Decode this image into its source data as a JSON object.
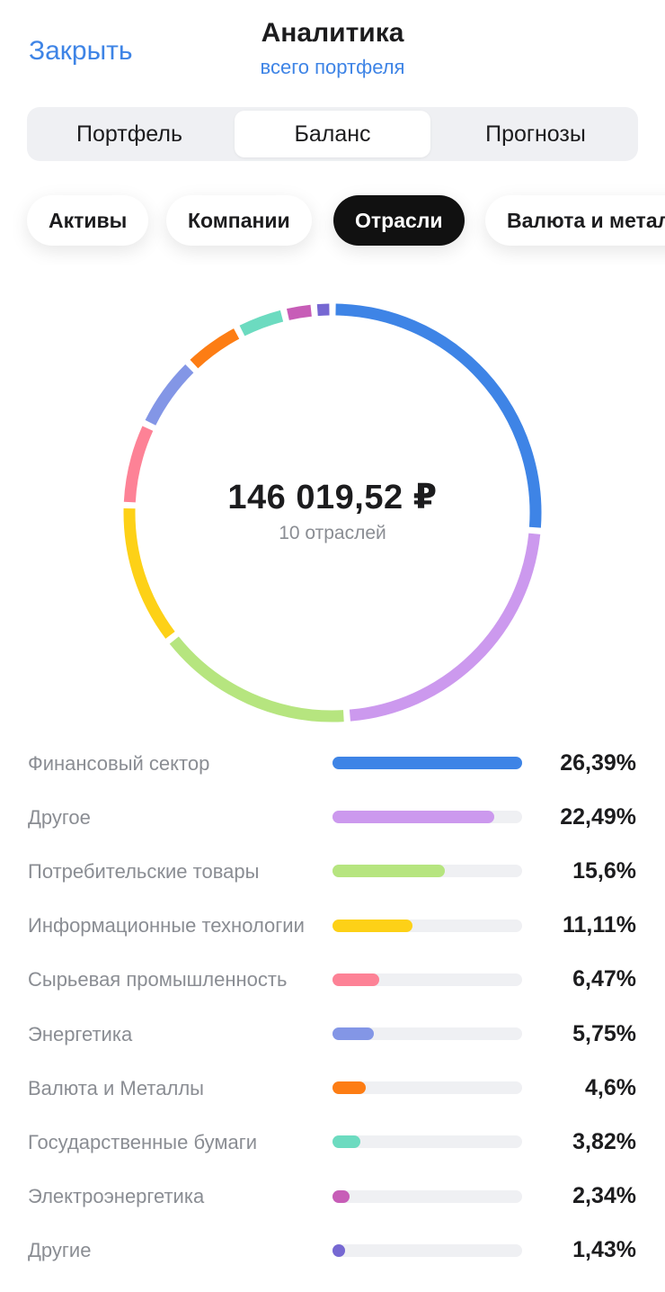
{
  "header": {
    "close_label": "Закрыть",
    "title": "Аналитика",
    "subtitle": "всего портфеля"
  },
  "tabs": [
    {
      "label": "Портфель",
      "active": false
    },
    {
      "label": "Баланс",
      "active": true
    },
    {
      "label": "Прогнозы",
      "active": false
    }
  ],
  "filters": [
    {
      "label": "Активы",
      "active": false
    },
    {
      "label": "Компании",
      "active": false
    },
    {
      "label": "Отрасли",
      "active": true
    },
    {
      "label": "Валюта и металлы",
      "active": false
    }
  ],
  "summary": {
    "total": "146 019,52 ₽",
    "count_label": "10 отраслей"
  },
  "chart_data": {
    "type": "pie",
    "categories": [
      "Финансовый сектор",
      "Другое",
      "Потребительские товары",
      "Информационные технологии",
      "Сырьевая промышленность",
      "Энергетика",
      "Валюта и Металлы",
      "Государственные бумаги",
      "Электроэнергетика",
      "Другие"
    ],
    "values": [
      26.39,
      22.49,
      15.6,
      11.11,
      6.47,
      5.75,
      4.6,
      3.82,
      2.34,
      1.43
    ],
    "value_labels": [
      "26,39%",
      "22,49%",
      "15,6%",
      "11,11%",
      "6,47%",
      "5,75%",
      "4,6%",
      "3,82%",
      "2,34%",
      "1,43%"
    ],
    "colors": [
      "#3e84e6",
      "#cc99ee",
      "#b6e57f",
      "#fdd117",
      "#fd8296",
      "#8396e6",
      "#fd7d14",
      "#6cdbc0",
      "#c75db7",
      "#7668d2"
    ],
    "donut": true,
    "legend": "bottom"
  }
}
